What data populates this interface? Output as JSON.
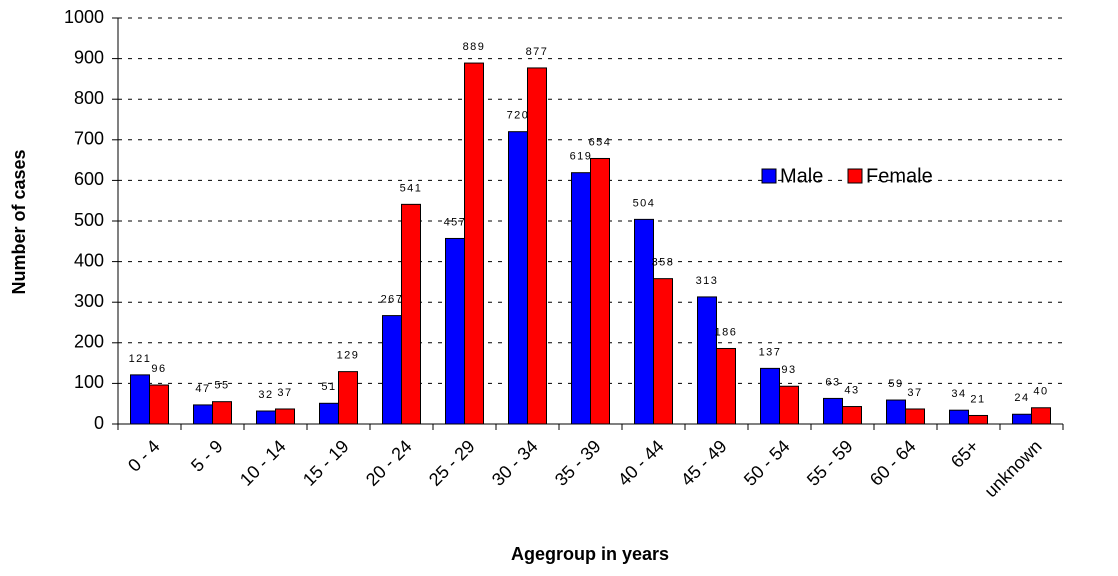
{
  "chart_data": {
    "type": "bar",
    "x_label": "Agegroup in years",
    "y_label": "Number of cases",
    "categories": [
      "0 - 4",
      "5 - 9",
      "10 - 14",
      "15 - 19",
      "20 - 24",
      "25 - 29",
      "30 - 34",
      "35 - 39",
      "40 - 44",
      "45 - 49",
      "50 - 54",
      "55 - 59",
      "60 - 64",
      "65+",
      "unknown"
    ],
    "series": [
      {
        "name": "Male",
        "color": "#0000ff",
        "values": [
          121,
          47,
          32,
          51,
          267,
          457,
          720,
          619,
          504,
          313,
          137,
          63,
          59,
          34,
          24
        ]
      },
      {
        "name": "Female",
        "color": "#ff0000",
        "values": [
          96,
          55,
          37,
          129,
          541,
          889,
          877,
          654,
          358,
          186,
          93,
          43,
          37,
          21,
          40
        ]
      }
    ],
    "ylim": [
      0,
      1000
    ],
    "yticks": [
      0,
      100,
      200,
      300,
      400,
      500,
      600,
      700,
      800,
      900,
      1000
    ],
    "grid": true
  }
}
